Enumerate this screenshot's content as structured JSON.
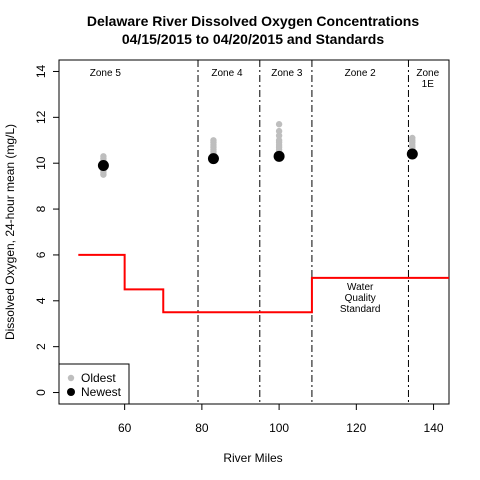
{
  "chart_data": {
    "type": "scatter",
    "title": "Delaware River Dissolved Oxygen Concentrations",
    "subtitle": "04/15/2015 to 04/20/2015 and Standards",
    "xlabel": "River Miles",
    "ylabel": "Dissolved Oxygen, 24-hour mean (mg/L)",
    "xlim": [
      43,
      144
    ],
    "ylim": [
      -0.5,
      14.5
    ],
    "x_ticks": [
      60,
      80,
      100,
      120,
      140
    ],
    "y_ticks": [
      0,
      2,
      4,
      6,
      8,
      10,
      12,
      14
    ],
    "grid": false,
    "zones": [
      {
        "name": "Zone 5",
        "label_x": 55
      },
      {
        "name": "Zone 4",
        "label_x": 86.5
      },
      {
        "name": "Zone 3",
        "label_x": 102
      },
      {
        "name": "Zone 2",
        "label_x": 121
      },
      {
        "name": "Zone\n1E",
        "label_x": 138.5
      }
    ],
    "zone_boundaries": [
      79,
      95,
      108.5,
      133.5
    ],
    "series": [
      {
        "name": "Oldest",
        "color": "#bebebe",
        "points": [
          {
            "x": 54.5,
            "y": 9.5
          },
          {
            "x": 54.5,
            "y": 9.6
          },
          {
            "x": 54.5,
            "y": 9.7
          },
          {
            "x": 54.5,
            "y": 9.8
          },
          {
            "x": 54.5,
            "y": 9.9
          },
          {
            "x": 54.5,
            "y": 10.0
          },
          {
            "x": 54.5,
            "y": 10.1
          },
          {
            "x": 54.5,
            "y": 10.2
          },
          {
            "x": 54.5,
            "y": 10.3
          },
          {
            "x": 83,
            "y": 10.3
          },
          {
            "x": 83,
            "y": 10.4
          },
          {
            "x": 83,
            "y": 10.5
          },
          {
            "x": 83,
            "y": 10.6
          },
          {
            "x": 83,
            "y": 10.7
          },
          {
            "x": 83,
            "y": 10.8
          },
          {
            "x": 83,
            "y": 10.9
          },
          {
            "x": 83,
            "y": 11.0
          },
          {
            "x": 100,
            "y": 10.4
          },
          {
            "x": 100,
            "y": 10.5
          },
          {
            "x": 100,
            "y": 10.6
          },
          {
            "x": 100,
            "y": 10.7
          },
          {
            "x": 100,
            "y": 10.8
          },
          {
            "x": 100,
            "y": 10.9
          },
          {
            "x": 100,
            "y": 11.0
          },
          {
            "x": 100,
            "y": 11.2
          },
          {
            "x": 100,
            "y": 11.4
          },
          {
            "x": 100,
            "y": 11.7
          },
          {
            "x": 134.5,
            "y": 10.5
          },
          {
            "x": 134.5,
            "y": 10.6
          },
          {
            "x": 134.5,
            "y": 10.7
          },
          {
            "x": 134.5,
            "y": 10.8
          },
          {
            "x": 134.5,
            "y": 10.9
          },
          {
            "x": 134.5,
            "y": 11.0
          },
          {
            "x": 134.5,
            "y": 11.1
          }
        ]
      },
      {
        "name": "Newest",
        "color": "#000000",
        "points": [
          {
            "x": 54.5,
            "y": 9.9
          },
          {
            "x": 83,
            "y": 10.2
          },
          {
            "x": 100,
            "y": 10.3
          },
          {
            "x": 134.5,
            "y": 10.4
          }
        ]
      }
    ],
    "standard": {
      "label": "Water\nQuality\nStandard",
      "color": "#ff0000",
      "steps": [
        {
          "x": 48,
          "y": 6.0
        },
        {
          "x": 60,
          "y": 6.0
        },
        {
          "x": 60,
          "y": 4.5
        },
        {
          "x": 70,
          "y": 4.5
        },
        {
          "x": 70,
          "y": 3.5
        },
        {
          "x": 108.5,
          "y": 3.5
        },
        {
          "x": 108.5,
          "y": 5.0
        },
        {
          "x": 144,
          "y": 5.0
        }
      ]
    },
    "legend": {
      "position": "bottom-left",
      "entries": [
        {
          "label": "Oldest",
          "color": "#bebebe"
        },
        {
          "label": "Newest",
          "color": "#000000"
        }
      ]
    }
  }
}
